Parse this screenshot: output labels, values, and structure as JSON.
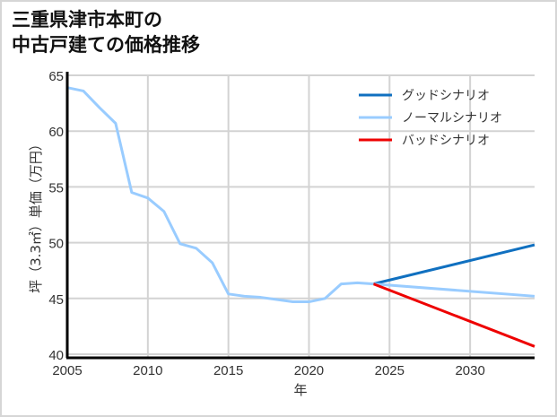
{
  "title": {
    "line1": "三重県津市本町の",
    "line2": "中古戸建ての価格推移"
  },
  "colors": {
    "good": "#1070c0",
    "normal": "#99ccff",
    "bad": "#ee0000",
    "grid": "#d3d3d3",
    "axis": "#000000"
  },
  "chart_data": {
    "type": "line",
    "title": "三重県津市本町の中古戸建ての価格推移",
    "xlabel": "年",
    "ylabel": "坪（3.3㎡）単価（万円）",
    "xlim": [
      2005,
      2034
    ],
    "ylim": [
      40,
      65
    ],
    "xticks": [
      2005,
      2010,
      2015,
      2020,
      2025,
      2030
    ],
    "yticks": [
      40,
      45,
      50,
      55,
      60,
      65
    ],
    "grid": true,
    "legend_position": "upper right",
    "historical": {
      "x": [
        2005,
        2006,
        2007,
        2008,
        2009,
        2010,
        2011,
        2012,
        2013,
        2014,
        2015,
        2016,
        2017,
        2018,
        2019,
        2020,
        2021,
        2022,
        2023,
        2024
      ],
      "values": [
        63.9,
        63.6,
        62.1,
        60.7,
        54.5,
        54.0,
        52.8,
        49.9,
        49.5,
        48.2,
        45.4,
        45.2,
        45.1,
        44.9,
        44.7,
        44.7,
        45.0,
        46.3,
        46.4,
        46.3
      ]
    },
    "series": [
      {
        "name": "グッドシナリオ",
        "color": "#1070c0",
        "x": [
          2024,
          2034
        ],
        "values": [
          46.3,
          49.8
        ]
      },
      {
        "name": "ノーマルシナリオ",
        "color": "#99ccff",
        "x": [
          2024,
          2034
        ],
        "values": [
          46.3,
          45.2
        ]
      },
      {
        "name": "バッドシナリオ",
        "color": "#ee0000",
        "x": [
          2024,
          2034
        ],
        "values": [
          46.3,
          40.7
        ]
      }
    ]
  }
}
